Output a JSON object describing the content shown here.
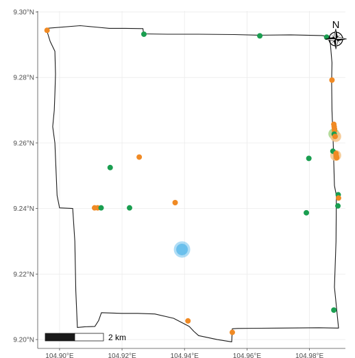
{
  "map": {
    "bounds": {
      "lon_min": 104.893,
      "lon_max": 104.9915,
      "lat_min": 9.1973,
      "lat_max": 9.3003
    },
    "grid": true,
    "x_ticks": [
      {
        "value": 104.9,
        "label": "104.90°E"
      },
      {
        "value": 104.92,
        "label": "104.92°E"
      },
      {
        "value": 104.94,
        "label": "104.94°E"
      },
      {
        "value": 104.96,
        "label": "104.96°E"
      },
      {
        "value": 104.98,
        "label": "104.98°E"
      }
    ],
    "y_ticks": [
      {
        "value": 9.2,
        "label": "9.20°N"
      },
      {
        "value": 9.22,
        "label": "9.22°N"
      },
      {
        "value": 9.24,
        "label": "9.24°N"
      },
      {
        "value": 9.26,
        "label": "9.26°N"
      },
      {
        "value": 9.28,
        "label": "9.28°N"
      },
      {
        "value": 9.3,
        "label": "9.30°N"
      }
    ],
    "boundary": [
      [
        104.8957,
        9.295
      ],
      [
        104.9066,
        9.2958
      ],
      [
        104.9114,
        9.2954
      ],
      [
        104.9159,
        9.295
      ],
      [
        104.9185,
        9.295
      ],
      [
        104.9193,
        9.295
      ],
      [
        104.921,
        9.295
      ],
      [
        104.9267,
        9.2949
      ],
      [
        104.9269,
        9.2933
      ],
      [
        104.9345,
        9.2932
      ],
      [
        104.9445,
        9.2932
      ],
      [
        104.956,
        9.2931
      ],
      [
        104.9641,
        9.2929
      ],
      [
        104.974,
        9.293
      ],
      [
        104.984,
        9.2928
      ],
      [
        104.9865,
        9.2924
      ],
      [
        104.9872,
        9.2845
      ],
      [
        104.9871,
        9.279
      ],
      [
        104.9872,
        9.27
      ],
      [
        104.9876,
        9.26
      ],
      [
        104.988,
        9.247
      ],
      [
        104.9886,
        9.244
      ],
      [
        104.9885,
        9.23
      ],
      [
        104.988,
        9.216
      ],
      [
        104.9893,
        9.2035
      ],
      [
        104.983,
        9.2036
      ],
      [
        104.97,
        9.2035
      ],
      [
        104.957,
        9.2034
      ],
      [
        104.9553,
        9.2033
      ],
      [
        104.9551,
        9.1993
      ],
      [
        104.9505,
        9.2
      ],
      [
        104.9445,
        9.2012
      ],
      [
        104.943,
        9.2025
      ],
      [
        104.9415,
        9.204
      ],
      [
        104.9365,
        9.2065
      ],
      [
        104.9305,
        9.2078
      ],
      [
        104.925,
        9.208
      ],
      [
        104.9199,
        9.208
      ],
      [
        104.9134,
        9.2082
      ],
      [
        104.9125,
        9.2058
      ],
      [
        104.9113,
        9.204
      ],
      [
        104.908,
        9.2039
      ],
      [
        104.9057,
        9.2037
      ],
      [
        104.9052,
        9.215
      ],
      [
        104.9049,
        9.23
      ],
      [
        104.9042,
        9.24
      ],
      [
        104.9,
        9.2402
      ],
      [
        104.8992,
        9.244
      ],
      [
        104.8985,
        9.26
      ],
      [
        104.8978,
        9.265
      ],
      [
        104.8983,
        9.27
      ],
      [
        104.8985,
        9.275
      ],
      [
        104.8987,
        9.281
      ],
      [
        104.8985,
        9.288
      ],
      [
        104.897,
        9.291
      ],
      [
        104.8957,
        9.295
      ]
    ],
    "colors": {
      "background": "#ffffff",
      "grid": "#ebebeb",
      "boundary": "#1a1a1a",
      "axis": "#4d4d4d",
      "orange": "#f08a24",
      "green": "#1a9e50",
      "blue": "#4fb3e8",
      "highlight_green": "#a8d58a",
      "highlight_orange": "#f5c48a"
    },
    "points": [
      {
        "lon": 104.896,
        "lat": 9.2944,
        "group": "orange"
      },
      {
        "lon": 104.927,
        "lat": 9.2932,
        "group": "green"
      },
      {
        "lon": 104.9641,
        "lat": 9.2927,
        "group": "green"
      },
      {
        "lon": 104.9855,
        "lat": 9.2923,
        "group": "green"
      },
      {
        "lon": 104.9872,
        "lat": 9.2792,
        "group": "orange"
      },
      {
        "lon": 104.9878,
        "lat": 9.2657,
        "group": "orange"
      },
      {
        "lon": 104.9879,
        "lat": 9.265,
        "group": "orange"
      },
      {
        "lon": 104.988,
        "lat": 9.2643,
        "group": "orange"
      },
      {
        "lon": 104.988,
        "lat": 9.2638,
        "group": "orange"
      },
      {
        "lon": 104.9879,
        "lat": 9.2627,
        "group": "green"
      },
      {
        "lon": 104.9882,
        "lat": 9.262,
        "group": "orange"
      },
      {
        "lon": 104.9875,
        "lat": 9.2575,
        "group": "green"
      },
      {
        "lon": 104.9885,
        "lat": 9.2568,
        "group": "orange"
      },
      {
        "lon": 104.9886,
        "lat": 9.256,
        "group": "orange"
      },
      {
        "lon": 104.9887,
        "lat": 9.2555,
        "group": "orange"
      },
      {
        "lon": 104.9798,
        "lat": 9.2553,
        "group": "green"
      },
      {
        "lon": 104.9255,
        "lat": 9.2557,
        "group": "orange"
      },
      {
        "lon": 104.9162,
        "lat": 9.2525,
        "group": "green"
      },
      {
        "lon": 104.9892,
        "lat": 9.2442,
        "group": "green"
      },
      {
        "lon": 104.9893,
        "lat": 9.2432,
        "group": "orange"
      },
      {
        "lon": 104.9891,
        "lat": 9.2408,
        "group": "green"
      },
      {
        "lon": 104.9112,
        "lat": 9.2402,
        "group": "orange"
      },
      {
        "lon": 104.9122,
        "lat": 9.2402,
        "group": "orange"
      },
      {
        "lon": 104.9133,
        "lat": 9.2402,
        "group": "green"
      },
      {
        "lon": 104.9224,
        "lat": 9.2402,
        "group": "green"
      },
      {
        "lon": 104.937,
        "lat": 9.2418,
        "group": "orange"
      },
      {
        "lon": 104.979,
        "lat": 9.2387,
        "group": "green"
      },
      {
        "lon": 104.9878,
        "lat": 9.209,
        "group": "green"
      },
      {
        "lon": 104.9411,
        "lat": 9.2057,
        "group": "orange"
      },
      {
        "lon": 104.9553,
        "lat": 9.2022,
        "group": "orange"
      }
    ],
    "highlights": [
      {
        "lon": 104.9878,
        "lat": 9.2628,
        "group": "highlight_green"
      },
      {
        "lon": 104.9884,
        "lat": 9.262,
        "group": "highlight_orange"
      },
      {
        "lon": 104.9884,
        "lat": 9.2562,
        "group": "highlight_orange"
      }
    ],
    "hotspot": {
      "lon": 104.9392,
      "lat": 9.2275,
      "group": "blue"
    },
    "scale_bar": {
      "label": "2 km",
      "km": 2
    },
    "north_arrow": {
      "label": "N"
    }
  }
}
